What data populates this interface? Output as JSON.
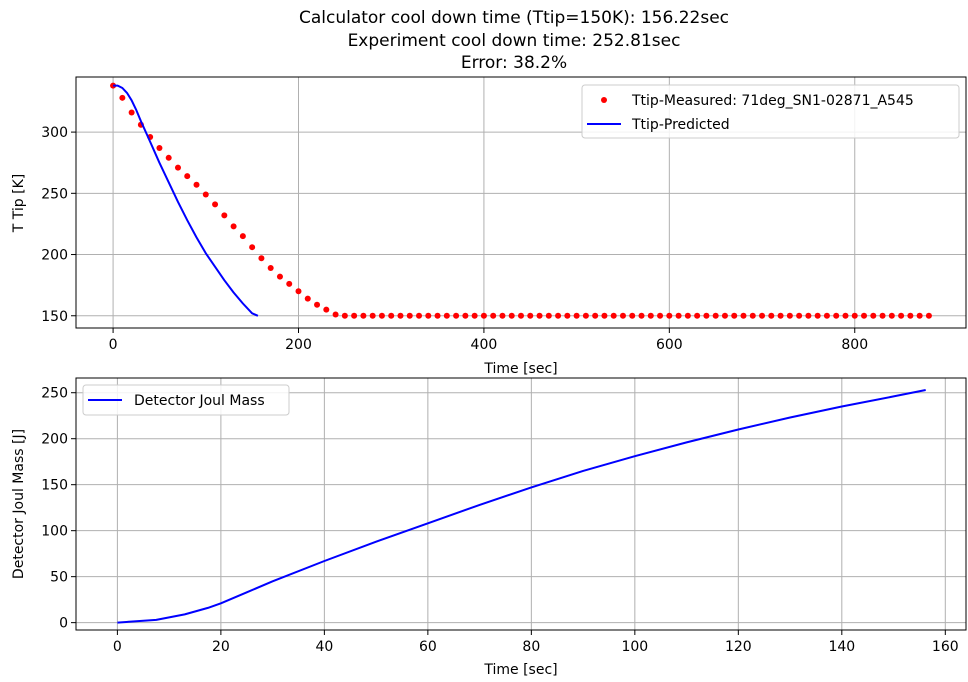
{
  "chart_data": [
    {
      "type": "scatter+line",
      "title_lines": [
        "Calculator cool down time (Ttip=150K): 156.22sec",
        "Experiment cool down time: 252.81sec",
        "Error: 38.2%"
      ],
      "xlabel": "Time [sec]",
      "ylabel": "T Tip [K]",
      "xlim": [
        -40,
        920
      ],
      "ylim": [
        140,
        345
      ],
      "xticks": [
        0,
        200,
        400,
        600,
        800
      ],
      "yticks": [
        150,
        200,
        250,
        300
      ],
      "grid": true,
      "legend_position": "top-right",
      "series": [
        {
          "name": "Ttip-Measured: 71deg_SN1-02871_A545",
          "style": "markers",
          "color": "#ff0000",
          "x": [
            0,
            10,
            20,
            30,
            40,
            50,
            60,
            70,
            80,
            90,
            100,
            110,
            120,
            130,
            140,
            150,
            160,
            170,
            180,
            190,
            200,
            210,
            220,
            230,
            240,
            250,
            260,
            270,
            280,
            290,
            300,
            310,
            320,
            330,
            340,
            350,
            360,
            370,
            380,
            390,
            400,
            410,
            420,
            430,
            440,
            450,
            460,
            470,
            480,
            490,
            500,
            510,
            520,
            530,
            540,
            550,
            560,
            570,
            580,
            590,
            600,
            610,
            620,
            630,
            640,
            650,
            660,
            670,
            680,
            690,
            700,
            710,
            720,
            730,
            740,
            750,
            760,
            770,
            780,
            790,
            800,
            810,
            820,
            830,
            840,
            850,
            860,
            870,
            880
          ],
          "y": [
            338,
            328,
            316,
            306,
            296,
            287,
            279,
            271,
            264,
            257,
            249,
            241,
            232,
            223,
            215,
            206,
            197,
            189,
            182,
            176,
            170,
            164,
            159,
            155,
            151,
            150,
            150,
            150,
            150,
            150,
            150,
            150,
            150,
            150,
            150,
            150,
            150,
            150,
            150,
            150,
            150,
            150,
            150,
            150,
            150,
            150,
            150,
            150,
            150,
            150,
            150,
            150,
            150,
            150,
            150,
            150,
            150,
            150,
            150,
            150,
            150,
            150,
            150,
            150,
            150,
            150,
            150,
            150,
            150,
            150,
            150,
            150,
            150,
            150,
            150,
            150,
            150,
            150,
            150,
            150,
            150,
            150,
            150,
            150,
            150,
            150,
            150,
            150,
            150
          ]
        },
        {
          "name": "Ttip-Predicted",
          "style": "line",
          "color": "#0000ff",
          "x": [
            0,
            5,
            10,
            15,
            20,
            25,
            30,
            40,
            50,
            60,
            70,
            80,
            90,
            100,
            110,
            120,
            130,
            140,
            150,
            156.22
          ],
          "y": [
            338,
            338,
            336,
            332,
            326,
            318,
            309,
            292,
            275,
            259,
            243,
            228,
            214,
            201,
            190,
            179,
            169,
            160,
            152,
            150
          ]
        }
      ]
    },
    {
      "type": "line",
      "xlabel": "Time [sec]",
      "ylabel": "Detector Joul Mass [J]",
      "xlim": [
        -8,
        164
      ],
      "ylim": [
        -8,
        266
      ],
      "xticks": [
        0,
        20,
        40,
        60,
        80,
        100,
        120,
        140,
        160
      ],
      "yticks": [
        0,
        50,
        100,
        150,
        200,
        250
      ],
      "grid": true,
      "legend_position": "top-left",
      "series": [
        {
          "name": "Detector Joul Mass",
          "color": "#0000ff",
          "x": [
            0,
            7.5,
            13,
            17.5,
            20,
            25,
            30,
            40,
            50,
            60,
            70,
            80,
            90,
            100,
            110,
            120,
            130,
            140,
            150,
            156.22
          ],
          "y": [
            0,
            3,
            9,
            16,
            21,
            33,
            45,
            67,
            88,
            108,
            128,
            147,
            165,
            181,
            196,
            210,
            223,
            235,
            246,
            253
          ]
        }
      ]
    }
  ]
}
